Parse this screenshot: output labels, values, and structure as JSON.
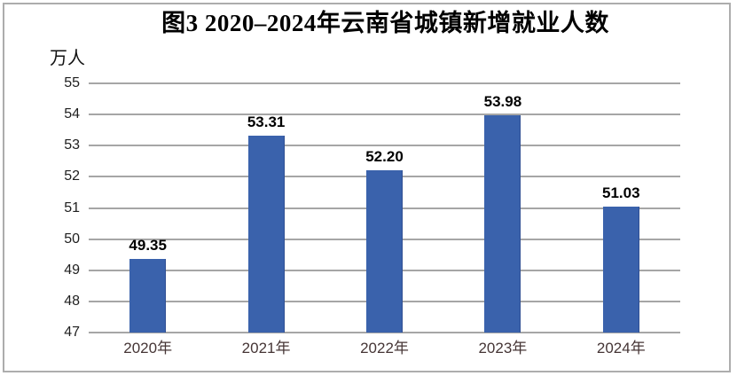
{
  "figure": {
    "title": "图3 2020–2024年云南省城镇新增就业人数",
    "unit_label": "万人"
  },
  "chart_data": {
    "type": "bar",
    "title": "图3 2020–2024年云南省城镇新增就业人数",
    "unit_label": "万人",
    "categories": [
      "2020年",
      "2021年",
      "2022年",
      "2023年",
      "2024年"
    ],
    "values": [
      49.35,
      53.31,
      52.2,
      53.98,
      51.03
    ],
    "value_labels": [
      "49.35",
      "53.31",
      "52.20",
      "53.98",
      "51.03"
    ],
    "ylim": [
      47,
      55
    ],
    "yticks": [
      55,
      54,
      53,
      52,
      51,
      50,
      49,
      48,
      47
    ],
    "grid": true,
    "legend": "none",
    "colors": {
      "bar": "#3A62AC",
      "bar_edge": "#2F4F93",
      "gridline": "#A6A6A6",
      "xtick_label": "#453535",
      "ytick_label": "#1F1F1F",
      "title": "#000000",
      "value_label": "#000000",
      "frame_border": "#ADADAD",
      "background": "#FFFFFF"
    }
  }
}
